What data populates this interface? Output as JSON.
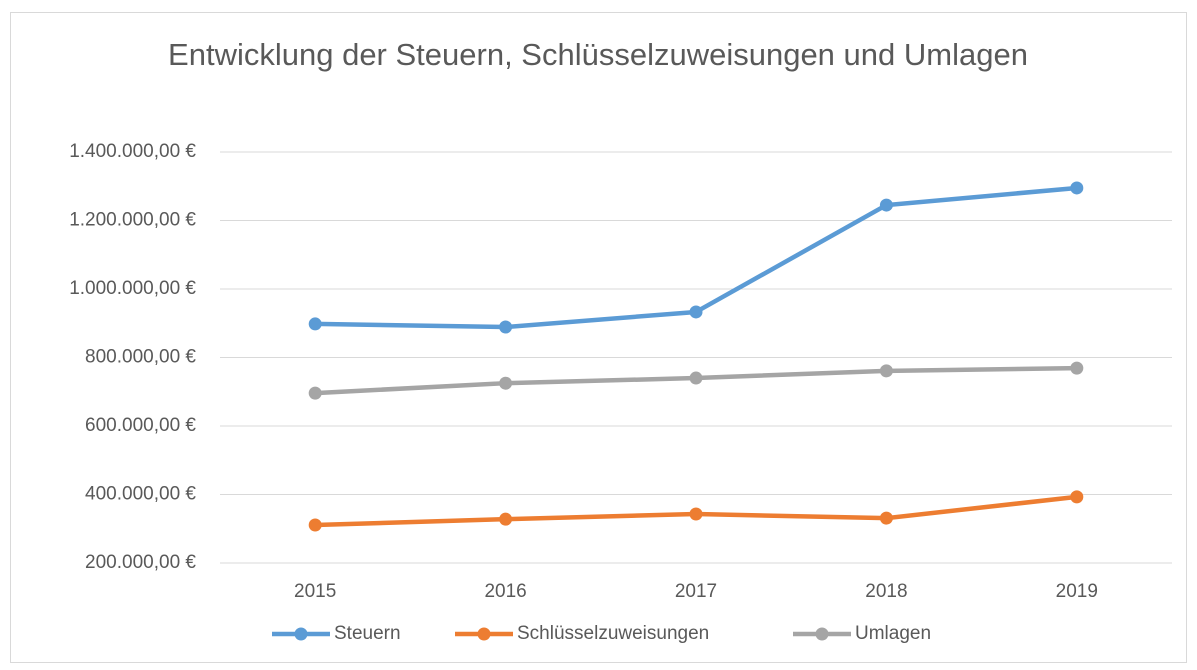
{
  "chart_data": {
    "type": "line",
    "title": "Entwicklung der Steuern, Schlüsselzuweisungen und Umlagen",
    "categories": [
      "2015",
      "2016",
      "2017",
      "2018",
      "2019"
    ],
    "series": [
      {
        "name": "Steuern",
        "color": "#5b9bd5",
        "values": [
          898000,
          889000,
          933000,
          1245000,
          1295000
        ]
      },
      {
        "name": "Schlüsselzuweisungen",
        "color": "#ed7d31",
        "values": [
          311000,
          328000,
          343000,
          331000,
          393000
        ]
      },
      {
        "name": "Umlagen",
        "color": "#a5a5a5",
        "values": [
          696000,
          725000,
          740000,
          761000,
          769000
        ]
      }
    ],
    "ylim": [
      200000,
      1400000
    ],
    "yticks": [
      {
        "value": 200000,
        "label": "200.000,00 €"
      },
      {
        "value": 400000,
        "label": "400.000,00 €"
      },
      {
        "value": 600000,
        "label": "600.000,00 €"
      },
      {
        "value": 800000,
        "label": "800.000,00 €"
      },
      {
        "value": 1000000,
        "label": "1.000.000,00 €"
      },
      {
        "value": 1200000,
        "label": "1.200.000,00 €"
      },
      {
        "value": 1400000,
        "label": "1.400.000,00 €"
      }
    ],
    "grid": true,
    "legend": "bottom"
  }
}
